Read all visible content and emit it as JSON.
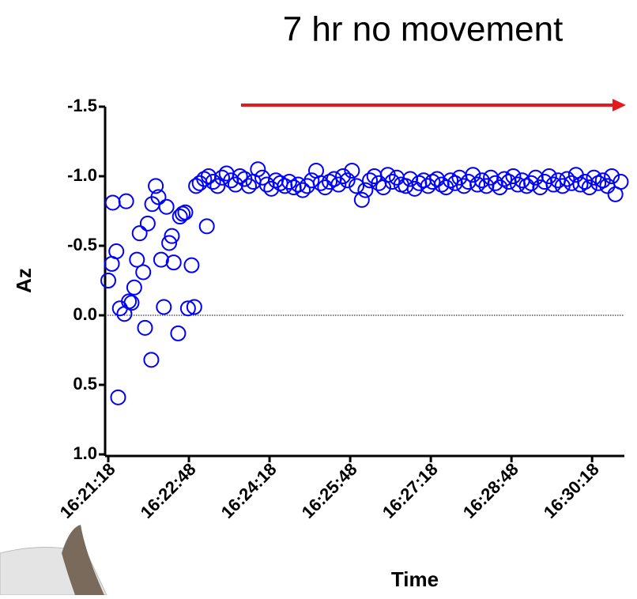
{
  "chart_data": {
    "type": "scatter",
    "title": "7 hr no movement",
    "x_label": "Time",
    "y_label": "Az",
    "y_inverted": true,
    "reference_line": 0,
    "color": "#0000ff",
    "xlim": [
      "16:21:18",
      "16:30:54"
    ],
    "xticks": [
      "16:21:18",
      "16:22:48",
      "16:24:18",
      "16:25:48",
      "16:27:18",
      "16:28:48",
      "16:30:18"
    ],
    "ylim": [
      -1.5,
      1.0
    ],
    "yticks": [
      -1.5,
      {
        "value": -1,
        "label": "-1.0"
      },
      -0.5,
      {
        "value": 0,
        "label": "0.0"
      },
      0.5,
      {
        "value": 1,
        "label": "1.0"
      }
    ],
    "x": [
      "16:21:18",
      "16:21:22",
      "16:21:23",
      "16:21:27",
      "16:21:29",
      "16:21:31",
      "16:21:36",
      "16:21:38",
      "16:21:41",
      "16:21:44",
      "16:21:47",
      "16:21:50",
      "16:21:53",
      "16:21:57",
      "16:21:59",
      "16:22:02",
      "16:22:06",
      "16:22:07",
      "16:22:11",
      "16:22:14",
      "16:22:17",
      "16:22:20",
      "16:22:23",
      "16:22:26",
      "16:22:29",
      "16:22:31",
      "16:22:36",
      "16:22:38",
      "16:22:41",
      "16:22:44",
      "16:22:47",
      "16:22:51",
      "16:22:54",
      "16:22:56",
      "16:23:08",
      "16:23:00",
      "16:23:05",
      "16:23:10",
      "16:23:15",
      "16:23:20",
      "16:23:25",
      "16:23:30",
      "16:23:35",
      "16:23:40",
      "16:23:45",
      "16:23:50",
      "16:23:55",
      "16:24:00",
      "16:24:05",
      "16:24:10",
      "16:24:15",
      "16:24:20",
      "16:24:25",
      "16:24:30",
      "16:24:35",
      "16:24:40",
      "16:24:45",
      "16:24:50",
      "16:24:55",
      "16:25:00",
      "16:25:05",
      "16:25:10",
      "16:25:15",
      "16:25:20",
      "16:25:25",
      "16:25:30",
      "16:25:35",
      "16:25:40",
      "16:25:45",
      "16:25:50",
      "16:25:55",
      "16:26:01",
      "16:26:05",
      "16:26:10",
      "16:26:15",
      "16:26:20",
      "16:26:25",
      "16:26:30",
      "16:26:35",
      "16:26:40",
      "16:26:45",
      "16:26:50",
      "16:26:55",
      "16:27:00",
      "16:27:05",
      "16:27:10",
      "16:27:15",
      "16:27:20",
      "16:27:25",
      "16:27:30",
      "16:27:35",
      "16:27:40",
      "16:27:45",
      "16:27:50",
      "16:27:55",
      "16:28:00",
      "16:28:05",
      "16:28:10",
      "16:28:15",
      "16:28:20",
      "16:28:25",
      "16:28:30",
      "16:28:35",
      "16:28:40",
      "16:28:45",
      "16:28:50",
      "16:28:55",
      "16:29:00",
      "16:29:05",
      "16:29:10",
      "16:29:15",
      "16:29:20",
      "16:29:25",
      "16:29:30",
      "16:29:35",
      "16:29:40",
      "16:29:45",
      "16:29:50",
      "16:29:55",
      "16:30:00",
      "16:30:05",
      "16:30:10",
      "16:30:15",
      "16:30:20",
      "16:30:25",
      "16:30:30",
      "16:30:35",
      "16:30:40",
      "16:30:44",
      "16:30:50"
    ],
    "values": [
      -0.25,
      -0.37,
      -0.81,
      -0.46,
      0.59,
      -0.05,
      -0.01,
      -0.82,
      -0.1,
      -0.09,
      -0.2,
      -0.4,
      -0.59,
      -0.31,
      0.09,
      -0.66,
      0.32,
      -0.8,
      -0.93,
      -0.85,
      -0.4,
      -0.06,
      -0.78,
      -0.52,
      -0.57,
      -0.38,
      0.13,
      -0.71,
      -0.73,
      -0.74,
      -0.05,
      -0.36,
      -0.06,
      -0.93,
      -0.64,
      -0.95,
      -0.98,
      -1.0,
      -0.96,
      -0.93,
      -0.99,
      -1.02,
      -0.97,
      -0.94,
      -1.0,
      -0.98,
      -0.93,
      -0.96,
      -1.05,
      -0.99,
      -0.94,
      -0.91,
      -0.97,
      -0.95,
      -0.93,
      -0.96,
      -0.92,
      -0.94,
      -0.9,
      -0.93,
      -0.97,
      -1.04,
      -0.95,
      -0.92,
      -0.96,
      -0.98,
      -0.94,
      -1.0,
      -0.97,
      -1.04,
      -0.93,
      -0.83,
      -0.9,
      -0.97,
      -1.0,
      -0.95,
      -0.92,
      -1.01,
      -0.96,
      -0.99,
      -0.94,
      -0.93,
      -0.98,
      -0.91,
      -0.95,
      -0.97,
      -0.93,
      -0.96,
      -0.98,
      -0.94,
      -0.92,
      -0.97,
      -0.95,
      -0.99,
      -0.93,
      -0.96,
      -1.01,
      -0.94,
      -0.97,
      -0.93,
      -0.99,
      -0.95,
      -0.92,
      -0.98,
      -0.96,
      -1.0,
      -0.94,
      -0.97,
      -0.93,
      -0.95,
      -0.99,
      -0.92,
      -0.96,
      -1.0,
      -0.94,
      -0.97,
      -0.93,
      -0.98,
      -0.95,
      -1.01,
      -0.94,
      -0.96,
      -0.92,
      -0.99,
      -0.95,
      -0.97,
      -0.93,
      -1.0,
      -0.87,
      -0.96
    ]
  }
}
